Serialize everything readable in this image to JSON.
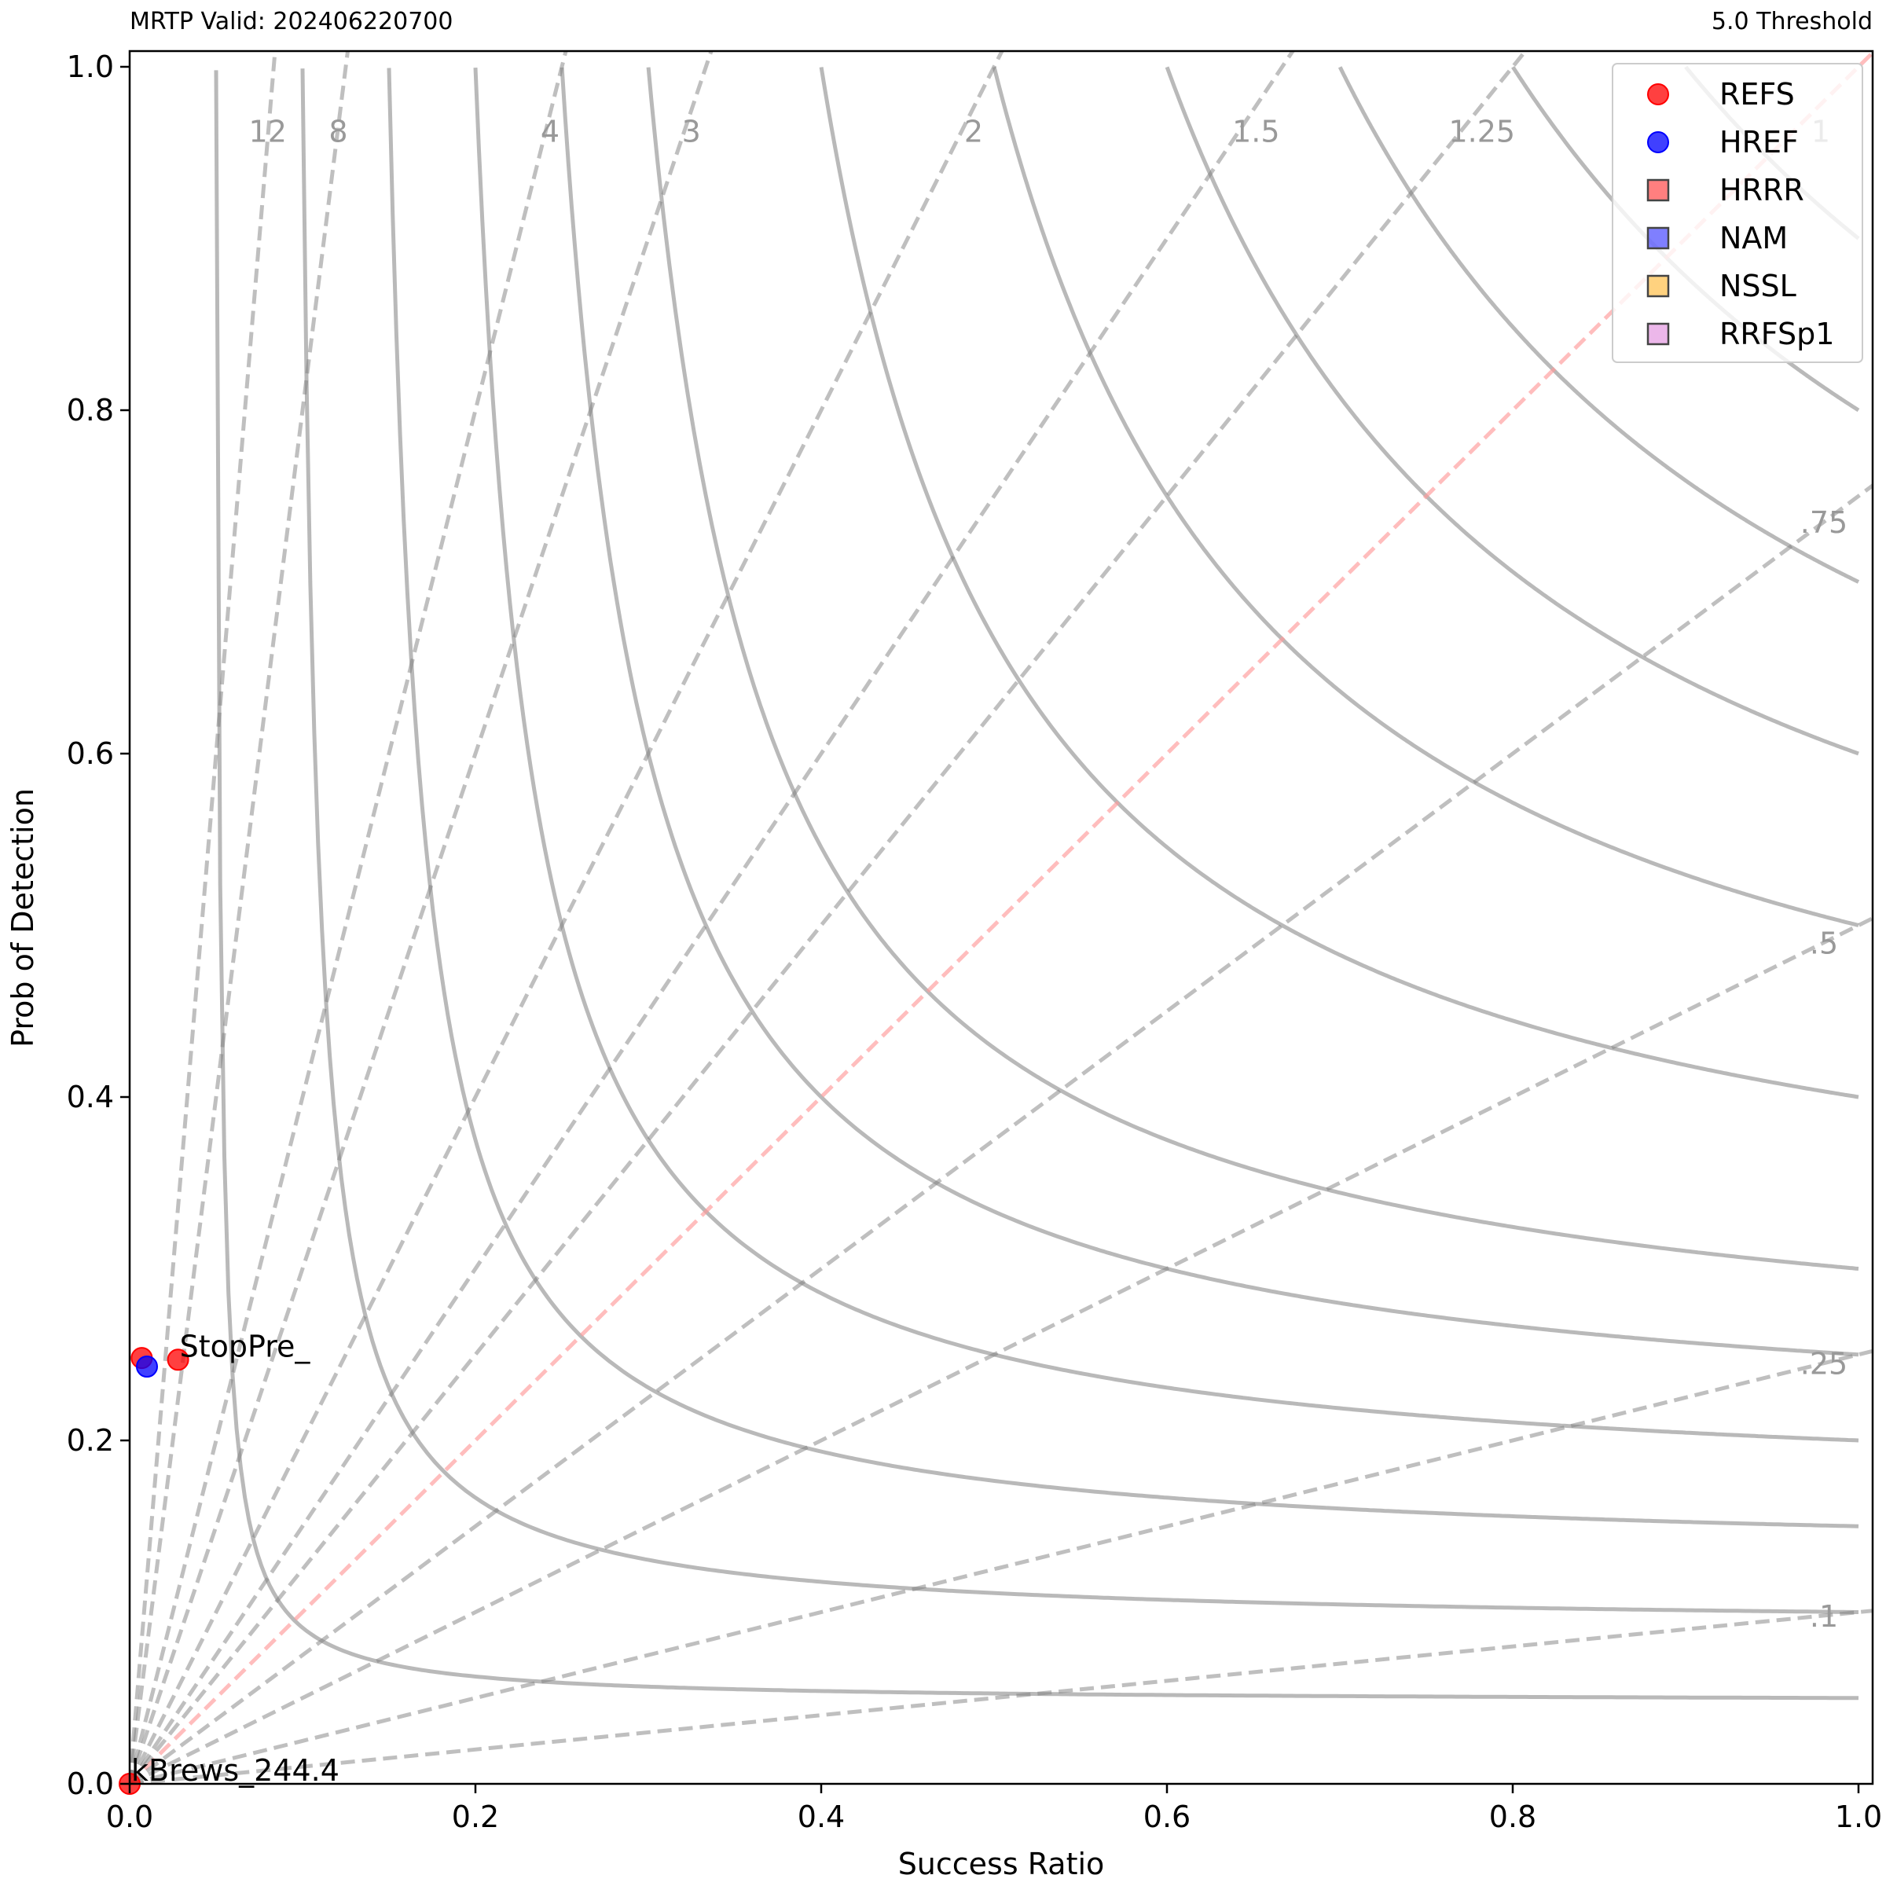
{
  "header": {
    "left_title": "MRTP Valid: 202406220700",
    "right_title": "5.0 Threshold"
  },
  "chart_data": {
    "type": "scatter",
    "chart_kind": "performance diagram",
    "xlabel": "Success Ratio",
    "ylabel": "Prob of Detection",
    "xlim": [
      0,
      1
    ],
    "ylim": [
      0,
      1
    ],
    "xticks": [
      "0.0",
      "0.2",
      "0.4",
      "0.6",
      "0.8",
      "1.0"
    ],
    "yticks": [
      "0.0",
      "0.2",
      "0.4",
      "0.6",
      "0.8",
      "1.0"
    ],
    "grid": false,
    "legend_position": "top-right",
    "csi_contours": [
      0.05,
      0.1,
      0.15,
      0.2,
      0.25,
      0.3,
      0.4,
      0.5,
      0.6,
      0.7,
      0.8,
      0.9
    ],
    "bias_lines": [
      {
        "value": 12,
        "label": "12"
      },
      {
        "value": 8,
        "label": "8"
      },
      {
        "value": 4,
        "label": "4"
      },
      {
        "value": 3,
        "label": "3"
      },
      {
        "value": 2,
        "label": "2"
      },
      {
        "value": 1.5,
        "label": "1.5"
      },
      {
        "value": 1.25,
        "label": "1.25"
      },
      {
        "value": 1,
        "label": "1"
      },
      {
        "value": 0.75,
        "label": ".75"
      },
      {
        "value": 0.5,
        "label": ".5"
      },
      {
        "value": 0.25,
        "label": ".25"
      },
      {
        "value": 0.1,
        "label": ".1"
      }
    ],
    "series": [
      {
        "name": "REFS",
        "marker": "circle",
        "color": "#ff0000",
        "points": [
          [
            0.007,
            0.248
          ],
          [
            0.028,
            0.247
          ],
          [
            0.0,
            0.0
          ]
        ]
      },
      {
        "name": "HREF",
        "marker": "circle",
        "color": "#0000ff",
        "points": [
          [
            0.01,
            0.243
          ]
        ]
      },
      {
        "name": "HRRR",
        "marker": "square",
        "color": "#ff0000",
        "points": []
      },
      {
        "name": "NAM",
        "marker": "square",
        "color": "#0000ff",
        "points": []
      },
      {
        "name": "NSSL",
        "marker": "square",
        "color": "#ffa500",
        "points": []
      },
      {
        "name": "RRFSp1",
        "marker": "square",
        "color": "#da70d6",
        "points": []
      }
    ],
    "annotations": [
      {
        "text": "StopPre_",
        "x": 0.028,
        "y": 0.247
      },
      {
        "text": "kBrews_244.4",
        "x": 0.0,
        "y": 0.0
      }
    ]
  }
}
